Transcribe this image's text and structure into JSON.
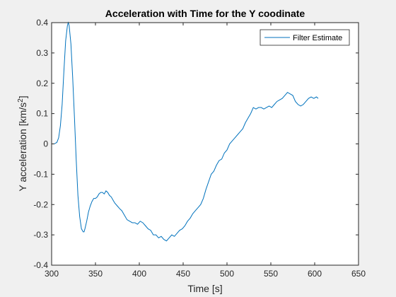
{
  "chart_data": {
    "type": "line",
    "title": "Acceleration with Time for the Y coodinate",
    "xlabel": "Time [s]",
    "ylabel_main": "Y acceleration [km/s",
    "ylabel_sup": "2",
    "ylabel_tail": "]",
    "xlim": [
      300,
      650
    ],
    "ylim": [
      -0.4,
      0.4
    ],
    "xticks": [
      300,
      350,
      400,
      450,
      500,
      550,
      600,
      650
    ],
    "yticks": [
      -0.4,
      -0.3,
      -0.2,
      -0.1,
      0,
      0.1,
      0.2,
      0.3,
      0.4
    ],
    "legend": "top-right",
    "grid": false,
    "series": [
      {
        "name": "Filter Estimate",
        "color": "#0072bd",
        "x": [
          303,
          306,
          308,
          310,
          312,
          314,
          316,
          318,
          319,
          320,
          322,
          324,
          326,
          328,
          330,
          332,
          334,
          336,
          337,
          338,
          340,
          342,
          344,
          346,
          348,
          350,
          352,
          354,
          356,
          358,
          360,
          362,
          364,
          366,
          368,
          370,
          372,
          375,
          378,
          380,
          383,
          386,
          389,
          392,
          395,
          398,
          401,
          404,
          407,
          410,
          413,
          416,
          419,
          422,
          425,
          428,
          431,
          434,
          437,
          440,
          443,
          446,
          449,
          452,
          455,
          458,
          461,
          464,
          467,
          470,
          473,
          476,
          479,
          482,
          485,
          488,
          491,
          494,
          497,
          500,
          503,
          506,
          509,
          512,
          515,
          518,
          521,
          524,
          527,
          530,
          533,
          536,
          539,
          542,
          545,
          548,
          551,
          554,
          557,
          560,
          563,
          566,
          569,
          572,
          575,
          578,
          581,
          584,
          587,
          590,
          593,
          596,
          599,
          602,
          604
        ],
        "y": [
          0.0,
          0.005,
          0.02,
          0.06,
          0.13,
          0.24,
          0.34,
          0.39,
          0.4,
          0.39,
          0.33,
          0.22,
          0.09,
          -0.05,
          -0.17,
          -0.24,
          -0.28,
          -0.29,
          -0.29,
          -0.28,
          -0.255,
          -0.225,
          -0.205,
          -0.19,
          -0.18,
          -0.18,
          -0.175,
          -0.165,
          -0.16,
          -0.16,
          -0.165,
          -0.155,
          -0.16,
          -0.17,
          -0.175,
          -0.185,
          -0.195,
          -0.205,
          -0.215,
          -0.22,
          -0.235,
          -0.25,
          -0.255,
          -0.26,
          -0.26,
          -0.265,
          -0.255,
          -0.26,
          -0.27,
          -0.28,
          -0.285,
          -0.3,
          -0.3,
          -0.31,
          -0.305,
          -0.315,
          -0.32,
          -0.31,
          -0.3,
          -0.305,
          -0.295,
          -0.285,
          -0.28,
          -0.27,
          -0.255,
          -0.245,
          -0.23,
          -0.22,
          -0.21,
          -0.2,
          -0.18,
          -0.15,
          -0.125,
          -0.1,
          -0.09,
          -0.07,
          -0.055,
          -0.05,
          -0.03,
          -0.02,
          0.0,
          0.01,
          0.02,
          0.03,
          0.04,
          0.05,
          0.07,
          0.085,
          0.1,
          0.12,
          0.115,
          0.12,
          0.12,
          0.115,
          0.12,
          0.125,
          0.12,
          0.13,
          0.14,
          0.145,
          0.15,
          0.16,
          0.17,
          0.165,
          0.16,
          0.14,
          0.13,
          0.125,
          0.13,
          0.14,
          0.15,
          0.155,
          0.15,
          0.155,
          0.15
        ]
      }
    ]
  }
}
